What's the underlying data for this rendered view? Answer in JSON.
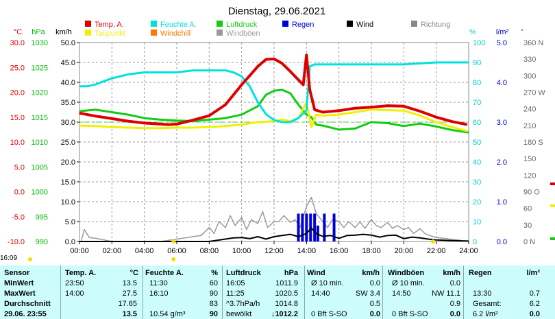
{
  "chart_data": {
    "type": "line",
    "title": "Dienstag, 29.06.2021",
    "x_ticks": [
      "00:00",
      "02:00",
      "04:00",
      "06:00",
      "08:00",
      "10:00",
      "12:00",
      "14:00",
      "16:00",
      "18:00",
      "20:00",
      "22:00",
      "24:00"
    ],
    "xlim_hours": [
      0,
      24
    ],
    "axes": [
      {
        "unit": "°C",
        "ticks": [
          "30.0",
          "25.0",
          "20.0",
          "15.0",
          "10.0",
          "5.0",
          "0.0",
          "-5.0",
          "-10.0"
        ],
        "range": [
          -10,
          30
        ],
        "color": "#dd0000"
      },
      {
        "unit": "hPa",
        "ticks": [
          "1030",
          "1025",
          "1020",
          "1015",
          "1010",
          "1005",
          "1000",
          "995",
          "990"
        ],
        "range": [
          990,
          1030
        ],
        "color": "#00bb00"
      },
      {
        "unit": "km/h",
        "ticks": [
          "50.0",
          "45.0",
          "40.0",
          "35.0",
          "30.0",
          "25.0",
          "20.0",
          "15.0",
          "10.0",
          "5.0",
          "0.0"
        ],
        "range": [
          0,
          50
        ],
        "color": "#000000"
      },
      {
        "unit": "%",
        "ticks": [
          "100",
          "90",
          "80",
          "70",
          "60",
          "50",
          "40",
          "30",
          "20",
          "10",
          "0"
        ],
        "range": [
          0,
          100
        ],
        "color": "#00cccc"
      },
      {
        "unit": "l/m²",
        "ticks": [
          "5.0",
          "4.0",
          "3.0",
          "2.0",
          "1.0",
          "0.0"
        ],
        "range": [
          0,
          5
        ],
        "color": "#0000cc"
      },
      {
        "unit": "°",
        "ticks": [
          "360 N",
          "330",
          "300",
          "270 W",
          "240",
          "210",
          "180 S",
          "150",
          "120",
          "90 O",
          "60",
          "30",
          "0 N"
        ],
        "range": [
          0,
          360
        ],
        "color": "#666666"
      }
    ],
    "legend": [
      {
        "name": "Temp. A.",
        "color": "#dd0000"
      },
      {
        "name": "Feuchte A.",
        "color": "#00e0e0"
      },
      {
        "name": "Luftdruck",
        "color": "#11cc11"
      },
      {
        "name": "Regen",
        "color": "#0000dd"
      },
      {
        "name": "Wind",
        "color": "#000000"
      },
      {
        "name": "Richtung",
        "color": "#888888"
      },
      {
        "name": "Taupunkt",
        "color": "#f0f000"
      },
      {
        "name": "Windchill",
        "color": "#ff7700"
      },
      {
        "name": "Windböen",
        "color": "#999999"
      }
    ],
    "series": [
      {
        "name": "Temp. A.",
        "axis": "°C",
        "x": [
          0,
          1,
          2,
          3,
          4,
          5,
          5.5,
          6,
          7,
          8,
          9,
          10,
          11,
          11.5,
          12,
          12.5,
          13,
          13.5,
          13.8,
          14,
          14.2,
          14.5,
          15,
          16,
          17,
          18,
          19,
          20,
          21,
          22,
          23,
          23.9
        ],
        "y": [
          15.8,
          15.2,
          14.7,
          14.2,
          13.8,
          13.6,
          13.5,
          13.6,
          14.4,
          15.3,
          17.5,
          21.5,
          25.2,
          26.6,
          26.7,
          25.8,
          24.2,
          22.5,
          21.5,
          27.5,
          20.5,
          16.5,
          16,
          16.3,
          16.8,
          17,
          17.3,
          17.2,
          16.2,
          15,
          14.1,
          13.5
        ]
      },
      {
        "name": "Taupunkt",
        "axis": "°C",
        "x": [
          0,
          1,
          2,
          3,
          4,
          5,
          6,
          7,
          8,
          9,
          10,
          11,
          12,
          12.5,
          13,
          13.5,
          14,
          14.3,
          14.6,
          15,
          16,
          17,
          18,
          19,
          20,
          21,
          22,
          23,
          23.9
        ],
        "y": [
          13.3,
          13.2,
          13,
          12.9,
          12.8,
          12.8,
          12.9,
          12.9,
          13,
          13.2,
          13.5,
          14,
          14.2,
          14.5,
          14.2,
          14.8,
          18,
          13,
          15.5,
          15.3,
          15.5,
          16,
          16.5,
          16.4,
          16.3,
          15.3,
          14,
          13,
          12.2
        ]
      },
      {
        "name": "Feuchte A.",
        "axis": "%",
        "x": [
          0,
          0.5,
          1,
          2,
          3,
          4,
          5,
          6,
          7,
          8,
          9,
          9.5,
          10,
          10.5,
          11,
          11.5,
          12,
          12.5,
          13,
          13.5,
          14,
          14.2,
          14.5,
          15,
          16,
          18,
          20,
          22,
          24
        ],
        "y": [
          78,
          78,
          79,
          82,
          84,
          85,
          85,
          85,
          86,
          86,
          86,
          85,
          83,
          78,
          70,
          64,
          61,
          60,
          60,
          62,
          66,
          88,
          89,
          89,
          89,
          89,
          89,
          90,
          90
        ]
      },
      {
        "name": "Luftdruck",
        "axis": "hPa",
        "x": [
          0,
          1,
          2,
          3,
          4,
          5,
          6,
          7,
          8,
          9,
          10,
          11,
          11.5,
          12,
          12.5,
          13,
          13.5,
          14,
          14.3,
          14.6,
          15,
          16,
          17,
          18,
          19,
          20,
          21,
          22,
          23,
          24
        ],
        "y": [
          1016.2,
          1016.5,
          1016,
          1015.5,
          1014.8,
          1014.5,
          1014.3,
          1014.2,
          1014.5,
          1014.8,
          1015.5,
          1017.2,
          1019.5,
          1020.3,
          1020.5,
          1019.8,
          1017.5,
          1015.5,
          1015,
          1013.5,
          1013.3,
          1012.5,
          1012.7,
          1014,
          1013.8,
          1013.2,
          1013.7,
          1013.1,
          1012.4,
          1011.9
        ]
      },
      {
        "name": "Wind",
        "axis": "km/h",
        "x": [
          0,
          6,
          8,
          8.5,
          9,
          9.5,
          10,
          10.5,
          11,
          11.5,
          12,
          12.5,
          13,
          13.5,
          14,
          14.3,
          14.6,
          15,
          15.5,
          16,
          16.5,
          17,
          17.5,
          18,
          18.5,
          19,
          19.5,
          20,
          20.5,
          21,
          21.5,
          22,
          22.5,
          23,
          24
        ],
        "y": [
          0,
          0,
          0,
          0.3,
          0.6,
          0.9,
          1,
          0.7,
          1.2,
          0.6,
          1.2,
          1.5,
          1.8,
          1.2,
          2,
          3.4,
          2,
          1.3,
          1.5,
          0.8,
          1.5,
          1.6,
          1.8,
          1.6,
          1.1,
          1.5,
          1.6,
          0.7,
          1.1,
          0.9,
          0.6,
          0.4,
          0.3,
          0.2,
          0.1
        ]
      },
      {
        "name": "Windböen",
        "axis": "km/h",
        "x": [
          0.1,
          0.3,
          0.6,
          1,
          2,
          3,
          5,
          7.5,
          8,
          8.3,
          8.6,
          9,
          9.3,
          9.6,
          10,
          10.3,
          10.6,
          11,
          11.3,
          11.6,
          12,
          12.3,
          12.6,
          13,
          13.3,
          13.6,
          14,
          14.3,
          14.6,
          15,
          15.3,
          15.6,
          16,
          16.3,
          16.6,
          17,
          17.3,
          17.6,
          18,
          18.3,
          18.6,
          19,
          19.3,
          19.6,
          20,
          20.3,
          20.6,
          21,
          21.3,
          21.6,
          22,
          22.5,
          23,
          23.5
        ],
        "y": [
          0,
          3,
          1,
          0.8,
          0,
          0,
          0,
          1.5,
          3.5,
          2,
          5,
          3.5,
          6.5,
          4,
          6,
          3,
          5.5,
          4.5,
          7.5,
          3.5,
          5,
          5,
          6.5,
          4.8,
          5.5,
          3.5,
          8.8,
          11.1,
          7,
          5,
          3.5,
          5.5,
          5,
          3.5,
          5,
          3.5,
          5,
          3.3,
          5.5,
          4,
          3.5,
          4.8,
          3.3,
          4,
          3,
          3.5,
          2,
          3.2,
          2,
          1.5,
          1,
          0.8,
          0.5,
          0.3
        ]
      },
      {
        "name": "Regen",
        "axis": "l/m²",
        "type": "bar",
        "x": [
          13.5,
          13.75,
          14,
          14.25,
          14.5,
          14.7,
          15.1,
          15.7
        ],
        "y": [
          0.7,
          0.7,
          0.7,
          0.7,
          0.7,
          0.4,
          0.7,
          0.7
        ]
      }
    ]
  },
  "footer_time": "16:09",
  "stats": {
    "headers": {
      "sensor": "Sensor",
      "temp": "Temp. A.",
      "temp_unit": "°C",
      "hum": "Feuchte A.",
      "hum_unit": "%",
      "press": "Luftdruck",
      "press_unit": "hPa",
      "wind": "Wind",
      "wind_unit": "km/h",
      "gust": "Windböen",
      "gust_unit": "km/h",
      "rain": "Regen",
      "rain_unit": "l/m²"
    },
    "rows": [
      {
        "label": "MinWert",
        "temp_time": "23:50",
        "temp": "13.5",
        "hum_time": "11:30",
        "hum": "60",
        "press_time": "16:05",
        "press": "1011.9",
        "wind_time": "Ø 10 min.",
        "wind": "0.0",
        "gust_time": "Ø 10 min.",
        "gust": "0.0",
        "rain_time": "",
        "rain": ""
      },
      {
        "label": "MaxWert",
        "temp_time": "14:00",
        "temp": "27.5",
        "hum_time": "16:10",
        "hum": "90",
        "press_time": "11:25",
        "press": "1020.5",
        "wind_time": "14:40",
        "wind": "SW 3.4",
        "gust_time": "14:50",
        "gust": "NW 11.1",
        "rain_time": "13:30",
        "rain": "0.7"
      },
      {
        "label": "Durchschnitt",
        "temp_time": "",
        "temp": "17.65",
        "hum_time": "",
        "hum": "83",
        "press_time": "^3.7hPa/h",
        "press": "1014.8",
        "wind_time": "",
        "wind": "0.5",
        "gust_time": "",
        "gust": "0.9",
        "rain_time": "Gesamt:",
        "rain": "6.2"
      },
      {
        "label": "29.06. 23:55",
        "temp_time": "",
        "temp": "13.5",
        "hum_time": "10.54 g/m³",
        "hum": "90",
        "press_time": "bewölkt",
        "press": "↓1012.2",
        "wind_time": "0 Bft S-SO",
        "wind": "0.0",
        "gust_time": "0 Bft S-SO",
        "gust": "0.0",
        "rain_time": "6.2 l/m²",
        "rain": "0.0"
      }
    ]
  }
}
